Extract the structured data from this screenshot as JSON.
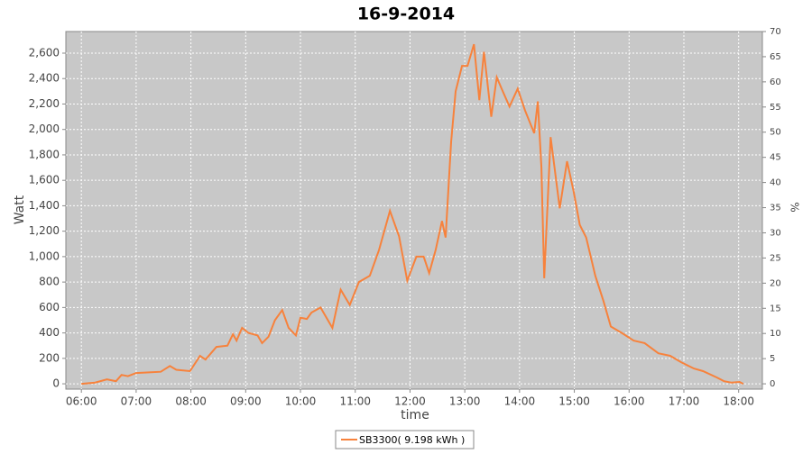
{
  "chart_data": {
    "type": "line",
    "title": "16-9-2014",
    "x_label": "time",
    "y_label": "Watt",
    "y2_label": "%",
    "x": [
      "06:00",
      "06:15",
      "06:28",
      "06:38",
      "06:44",
      "06:51",
      "07:00",
      "07:14",
      "07:27",
      "07:37",
      "07:44",
      "07:59",
      "08:10",
      "08:16",
      "08:28",
      "08:40",
      "08:46",
      "08:50",
      "08:56",
      "09:03",
      "09:13",
      "09:18",
      "09:25",
      "09:32",
      "09:40",
      "09:47",
      "09:55",
      "10:00",
      "10:07",
      "10:12",
      "10:22",
      "10:35",
      "10:44",
      "10:54",
      "11:04",
      "11:16",
      "11:26",
      "11:38",
      "11:48",
      "11:57",
      "12:07",
      "12:15",
      "12:21",
      "12:28",
      "12:35",
      "12:39",
      "12:45",
      "12:50",
      "12:57",
      "13:03",
      "13:10",
      "13:16",
      "13:21",
      "13:29",
      "13:35",
      "13:41",
      "13:49",
      "13:58",
      "14:06",
      "14:16",
      "14:20",
      "14:24",
      "14:27",
      "14:30",
      "14:34",
      "14:44",
      "14:52",
      "14:59",
      "15:06",
      "15:13",
      "15:23",
      "15:32",
      "15:40",
      "15:52",
      "16:05",
      "16:17",
      "16:32",
      "16:45",
      "16:57",
      "17:11",
      "17:21",
      "17:36",
      "17:44",
      "17:52",
      "18:01",
      "18:05"
    ],
    "series": [
      {
        "name": "SB3300( 9.198 kWh )",
        "color": "#f7823c",
        "values": [
          0,
          10,
          35,
          20,
          70,
          60,
          85,
          90,
          95,
          140,
          110,
          100,
          220,
          190,
          290,
          300,
          390,
          340,
          440,
          400,
          380,
          320,
          370,
          500,
          580,
          440,
          380,
          520,
          510,
          560,
          600,
          440,
          740,
          620,
          800,
          850,
          1050,
          1360,
          1160,
          810,
          1000,
          1000,
          870,
          1050,
          1280,
          1150,
          1900,
          2300,
          2500,
          2500,
          2670,
          2230,
          2610,
          2100,
          2410,
          2310,
          2180,
          2320,
          2150,
          1970,
          2220,
          1700,
          830,
          1300,
          1940,
          1380,
          1750,
          1520,
          1250,
          1150,
          850,
          650,
          450,
          400,
          340,
          320,
          240,
          220,
          170,
          120,
          100,
          50,
          20,
          10,
          15,
          0
        ]
      }
    ],
    "xlim": [
      "05:43",
      "18:26"
    ],
    "xticks": [
      "06:00",
      "07:00",
      "08:00",
      "09:00",
      "10:00",
      "11:00",
      "12:00",
      "13:00",
      "14:00",
      "15:00",
      "16:00",
      "17:00",
      "18:00"
    ],
    "ylim": [
      -42,
      2770
    ],
    "yticks": [
      0,
      200,
      400,
      600,
      800,
      {
        "value": 1000,
        "label": "1,000"
      },
      {
        "value": 1200,
        "label": "1,200"
      },
      {
        "value": 1400,
        "label": "1,400"
      },
      {
        "value": 1600,
        "label": "1,600"
      },
      {
        "value": 1800,
        "label": "1,800"
      },
      {
        "value": 2000,
        "label": "2,000"
      },
      {
        "value": 2200,
        "label": "2,200"
      },
      {
        "value": 2400,
        "label": "2,400"
      },
      {
        "value": 2600,
        "label": "2,600"
      }
    ],
    "y2lim": [
      -1.06,
      70
    ],
    "y2ticks": [
      0,
      5,
      10,
      15,
      20,
      25,
      30,
      35,
      40,
      45,
      50,
      55,
      60,
      65,
      70
    ],
    "grid": true,
    "legend": "bottom"
  }
}
